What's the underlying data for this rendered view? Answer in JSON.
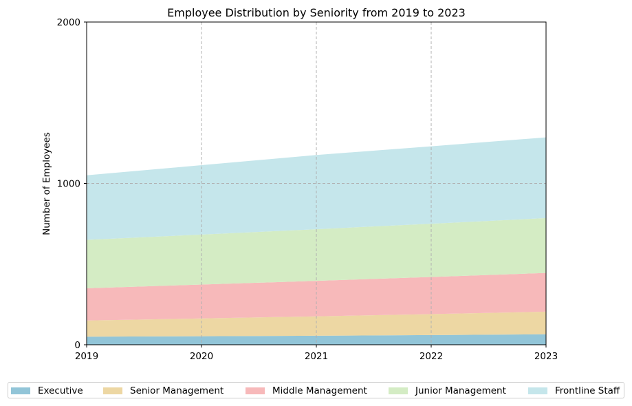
{
  "chart_data": {
    "type": "area",
    "stacked": true,
    "title": "Employee Distribution by Seniority from 2019 to 2023",
    "xlabel": "",
    "ylabel": "Number of Employees",
    "x": [
      2019,
      2020,
      2021,
      2022,
      2023
    ],
    "x_tick_labels": [
      "2019",
      "2020",
      "2021",
      "2022",
      "2023"
    ],
    "y_tick_labels": [
      "0",
      "1000",
      "2000"
    ],
    "y_ticks": [
      0,
      1000,
      2000
    ],
    "ylim": [
      0,
      2000
    ],
    "xlim": [
      2019,
      2023
    ],
    "grid": true,
    "legend_position": "bottom",
    "series": [
      {
        "name": "Executive",
        "values": [
          50,
          53,
          56,
          60,
          65
        ],
        "color": "#92c5d8"
      },
      {
        "name": "Senior Management",
        "values": [
          100,
          110,
          120,
          130,
          140
        ],
        "color": "#edd7a3"
      },
      {
        "name": "Middle Management",
        "values": [
          200,
          210,
          220,
          230,
          240
        ],
        "color": "#f7b9ba"
      },
      {
        "name": "Junior Management",
        "values": [
          300,
          310,
          320,
          330,
          340
        ],
        "color": "#d4ecc4"
      },
      {
        "name": "Frontline Staff",
        "values": [
          400,
          430,
          460,
          480,
          500
        ],
        "color": "#c5e6eb"
      }
    ]
  }
}
